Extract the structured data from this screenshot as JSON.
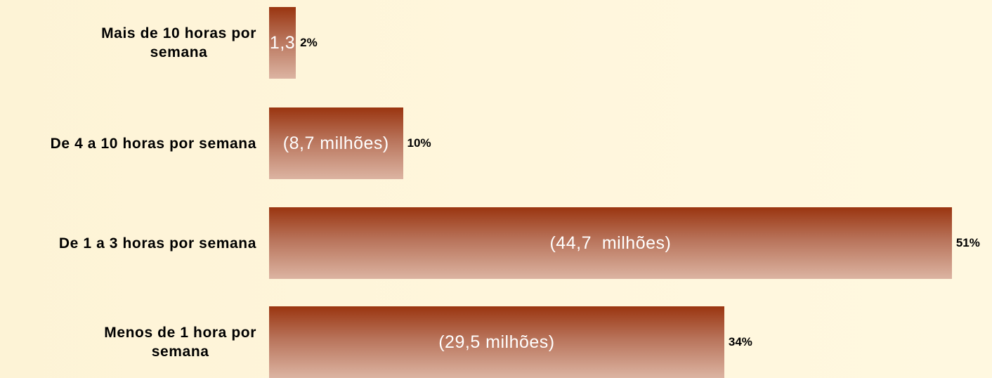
{
  "chart_data": {
    "type": "bar",
    "orientation": "horizontal",
    "categories": [
      "Mais de 10 horas por\nsemana",
      "De 4 a 10 horas por semana",
      "De 1 a 3 horas por semana",
      "Menos de 1 hora por\nsemana"
    ],
    "values": [
      2,
      10,
      51,
      34
    ],
    "value_labels": [
      "2%",
      "10%",
      "51%",
      "34%"
    ],
    "annotations": [
      "1,3",
      "(8,7 milhões)",
      "(44,7  milhões)",
      "(29,5 milhões)"
    ],
    "xlim": [
      0,
      54
    ],
    "color_top": "#9a3510",
    "color_bottom": "#dcb4a2"
  }
}
